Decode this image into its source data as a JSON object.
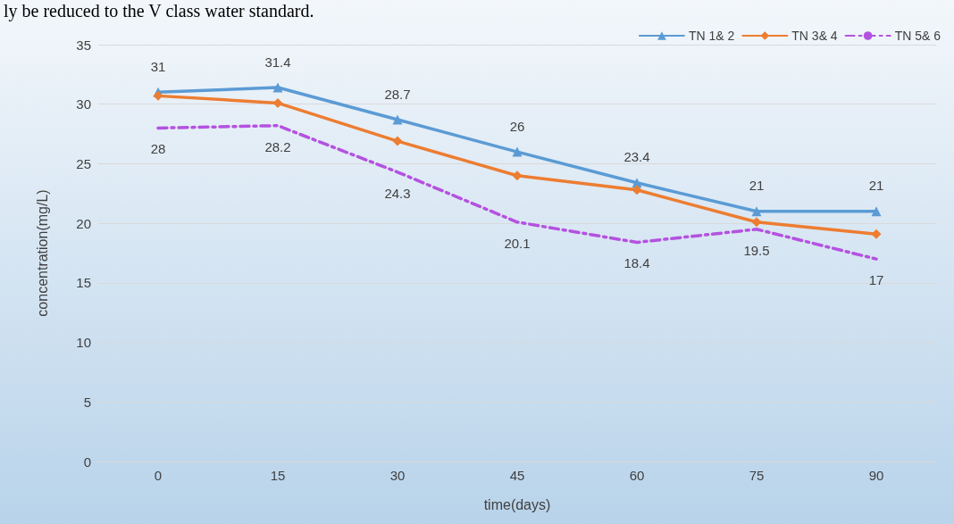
{
  "chart_data": {
    "type": "line",
    "xlabel": "time(days)",
    "ylabel": "concentration(mg/L)",
    "annotations": [
      "ly be reduced to the V class water standard."
    ],
    "categories": [
      "0",
      "15",
      "30",
      "45",
      "60",
      "75",
      "90"
    ],
    "ylim": [
      0,
      35
    ],
    "yticks": [
      0,
      5,
      10,
      15,
      20,
      25,
      30,
      35
    ],
    "grid": "y",
    "legend": "top right",
    "series": [
      {
        "name": "TN 1& 2",
        "color": "#5b9bd5",
        "marker": "triangle",
        "line_style": "solid",
        "values": [
          31,
          31.4,
          28.7,
          26,
          23.4,
          21,
          21
        ],
        "value_labels": [
          "31",
          "31.4",
          "28.7",
          "26",
          "23.4",
          "21",
          "21"
        ]
      },
      {
        "name": "TN 3& 4",
        "color": "#ed7d31",
        "marker": "diamond",
        "line_style": "solid",
        "values": [
          30.7,
          30.1,
          26.9,
          24.0,
          22.8,
          20.1,
          19.1
        ]
      },
      {
        "name": "TN 5& 6",
        "color": "#b452e0",
        "marker": "none",
        "line_style": "dashed",
        "values": [
          28,
          28.2,
          24.3,
          20.1,
          18.4,
          19.5,
          17
        ],
        "value_labels": [
          "28",
          "28.2",
          "24.3",
          "20.1",
          "18.4",
          "19.5",
          "17"
        ]
      }
    ]
  }
}
